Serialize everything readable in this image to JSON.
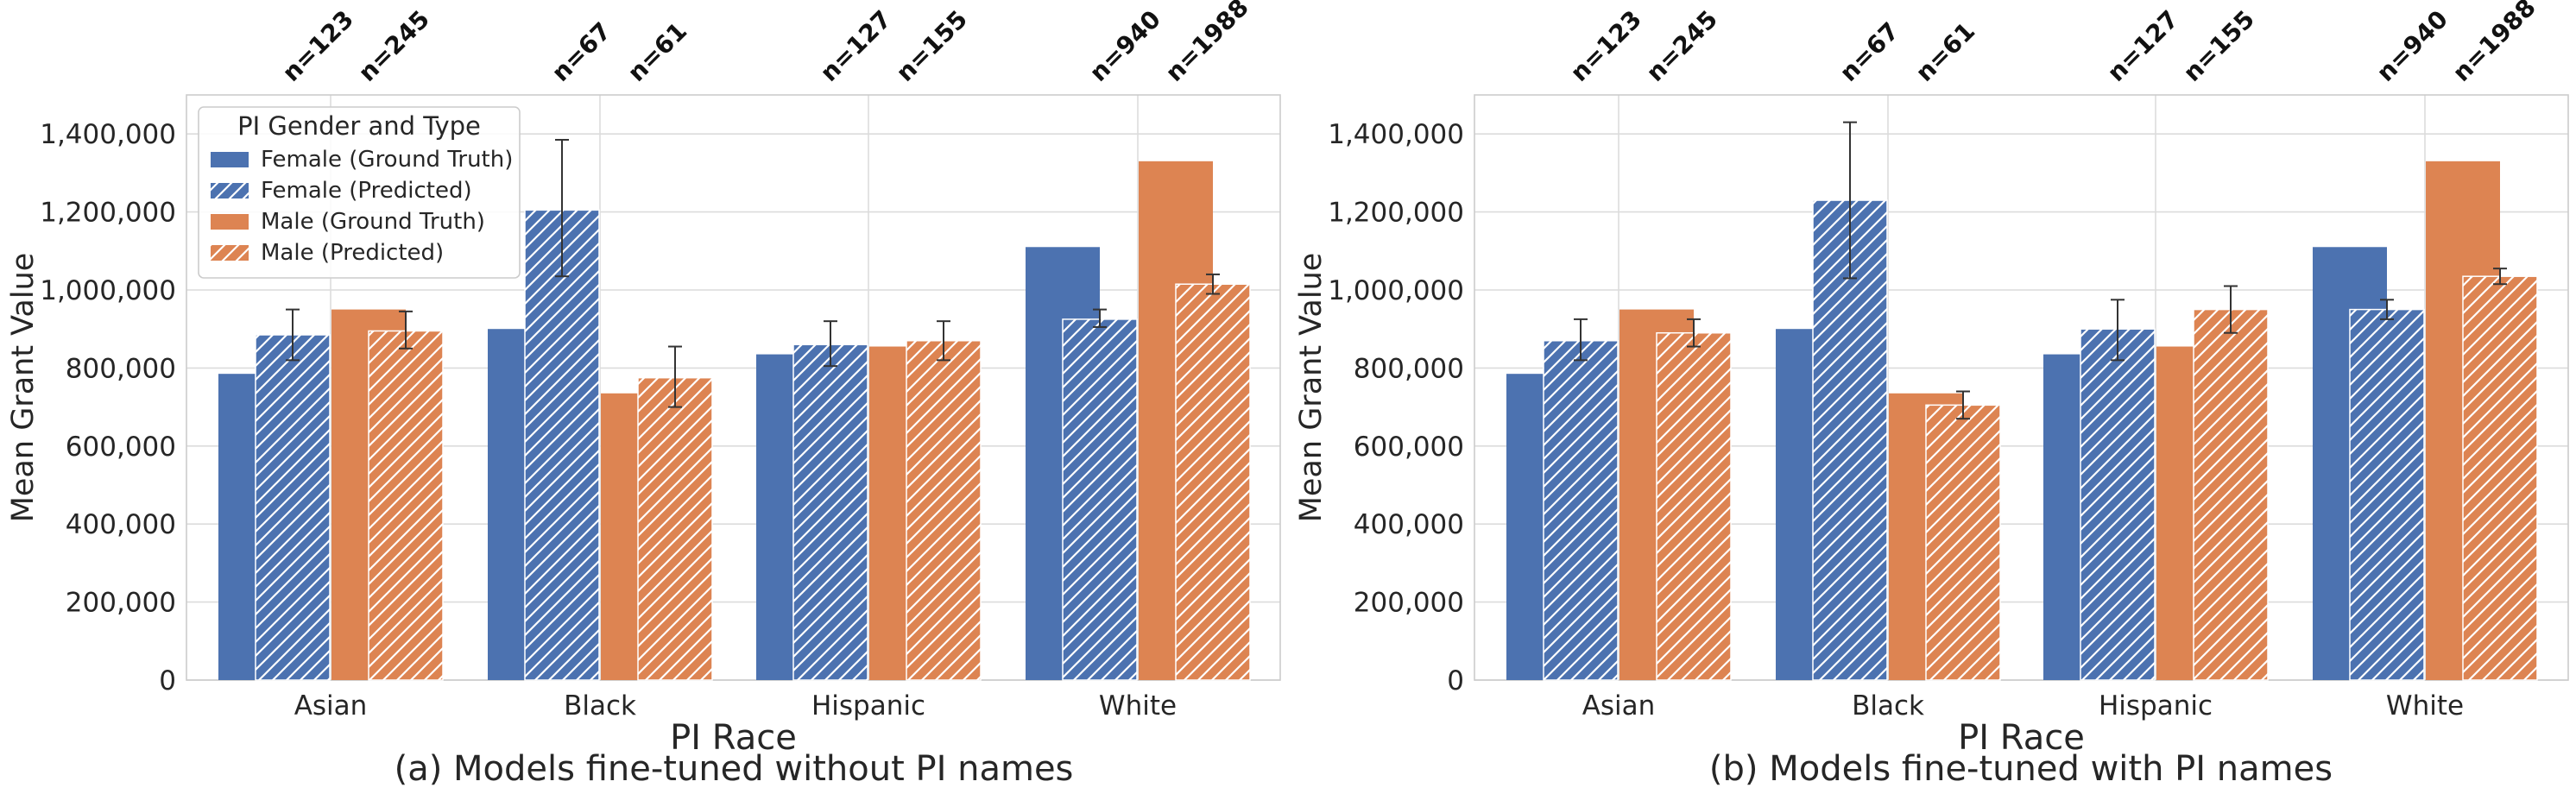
{
  "colors": {
    "female": "#4c72b0",
    "male": "#dd8452",
    "grid": "#dcdcdc",
    "errorbar": "#333333"
  },
  "legend": {
    "title": "PI Gender and Type",
    "entries": [
      {
        "label": "Female (Ground Truth)",
        "group": "female",
        "hatched": false
      },
      {
        "label": "Female (Predicted)",
        "group": "female",
        "hatched": true
      },
      {
        "label": "Male (Ground Truth)",
        "group": "male",
        "hatched": false
      },
      {
        "label": "Male (Predicted)",
        "group": "male",
        "hatched": true
      }
    ]
  },
  "chart_data": [
    {
      "type": "bar",
      "caption": "(a) Models fine-tuned without PI names",
      "xlabel": "PI Race",
      "ylabel": "Mean Grant Value",
      "ylim": [
        0,
        1500000
      ],
      "yticks": [
        0,
        200000,
        400000,
        600000,
        800000,
        1000000,
        1200000,
        1400000
      ],
      "ytick_labels": [
        "0",
        "200,000",
        "400,000",
        "600,000",
        "800,000",
        "1,000,000",
        "1,200,000",
        "1,400,000"
      ],
      "grid": true,
      "legend_position": "top-left",
      "categories": [
        "Asian",
        "Black",
        "Hispanic",
        "White"
      ],
      "sample_sizes": {
        "female": [
          "n=123",
          "n=67",
          "n=127",
          "n=940"
        ],
        "male": [
          "n=245",
          "n=61",
          "n=155",
          "n=1988"
        ]
      },
      "series": [
        {
          "name": "Female (Ground Truth)",
          "values": [
            785000,
            900000,
            835000,
            1110000
          ]
        },
        {
          "name": "Female (Predicted)",
          "values": [
            885000,
            1205000,
            860000,
            925000
          ],
          "error": [
            [
              820000,
              950000
            ],
            [
              1035000,
              1385000
            ],
            [
              805000,
              920000
            ],
            [
              905000,
              950000
            ]
          ]
        },
        {
          "name": "Male (Ground Truth)",
          "values": [
            950000,
            735000,
            855000,
            1330000
          ]
        },
        {
          "name": "Male (Predicted)",
          "values": [
            895000,
            775000,
            870000,
            1015000
          ],
          "error": [
            [
              850000,
              945000
            ],
            [
              700000,
              855000
            ],
            [
              820000,
              920000
            ],
            [
              990000,
              1040000
            ]
          ]
        }
      ]
    },
    {
      "type": "bar",
      "caption": "(b) Models fine-tuned with PI names",
      "xlabel": "PI Race",
      "ylabel": "Mean Grant Value",
      "ylim": [
        0,
        1500000
      ],
      "yticks": [
        0,
        200000,
        400000,
        600000,
        800000,
        1000000,
        1200000,
        1400000
      ],
      "ytick_labels": [
        "0",
        "200,000",
        "400,000",
        "600,000",
        "800,000",
        "1,000,000",
        "1,200,000",
        "1,400,000"
      ],
      "grid": true,
      "categories": [
        "Asian",
        "Black",
        "Hispanic",
        "White"
      ],
      "sample_sizes": {
        "female": [
          "n=123",
          "n=67",
          "n=127",
          "n=940"
        ],
        "male": [
          "n=245",
          "n=61",
          "n=155",
          "n=1988"
        ]
      },
      "series": [
        {
          "name": "Female (Ground Truth)",
          "values": [
            785000,
            900000,
            835000,
            1110000
          ]
        },
        {
          "name": "Female (Predicted)",
          "values": [
            870000,
            1230000,
            900000,
            950000
          ],
          "error": [
            [
              820000,
              925000
            ],
            [
              1030000,
              1430000
            ],
            [
              820000,
              975000
            ],
            [
              925000,
              975000
            ]
          ]
        },
        {
          "name": "Male (Ground Truth)",
          "values": [
            950000,
            735000,
            855000,
            1330000
          ]
        },
        {
          "name": "Male (Predicted)",
          "values": [
            890000,
            705000,
            950000,
            1035000
          ],
          "error": [
            [
              855000,
              925000
            ],
            [
              670000,
              740000
            ],
            [
              890000,
              1010000
            ],
            [
              1015000,
              1055000
            ]
          ]
        }
      ]
    }
  ]
}
